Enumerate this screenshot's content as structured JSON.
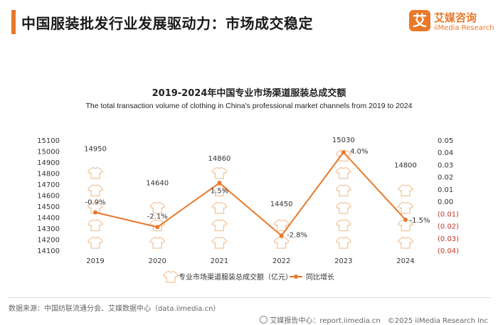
{
  "header": {
    "title": "中国服装批发行业发展驱动力：市场成交稳定",
    "logo_mark": "艾",
    "logo_cn": "艾媒咨询",
    "logo_en": "iiMedia Research"
  },
  "chart_data": {
    "type": "bar",
    "title": "2019-2024年中国专业市场渠道服装总成交额",
    "subtitle": "The total transaction volume of clothing in China's professional market channels from 2019 to 2024",
    "categories": [
      "2019",
      "2020",
      "2021",
      "2022",
      "2023",
      "2024"
    ],
    "series": [
      {
        "name": "专业市场渠道服装总成交额（亿元）",
        "type": "bar",
        "axis": "left",
        "values": [
          14950,
          14640,
          14860,
          14450,
          15030,
          14800
        ],
        "labels": [
          "14950",
          "14640",
          "14860",
          "14450",
          "15030",
          "14800"
        ]
      },
      {
        "name": "同比增长",
        "type": "line",
        "axis": "right",
        "values": [
          -0.009,
          -0.021,
          0.015,
          -0.028,
          0.04,
          -0.015
        ],
        "labels": [
          "-0.9%",
          "-2.1%",
          "1.5%",
          "-2.8%",
          "4.0%",
          "-1.5%"
        ]
      }
    ],
    "y_left": {
      "min": 14100,
      "max": 15100,
      "ticks": [
        "15100",
        "15000",
        "14900",
        "14800",
        "14700",
        "14600",
        "14500",
        "14400",
        "14300",
        "14200",
        "14100"
      ]
    },
    "y_right": {
      "min": -0.04,
      "max": 0.05,
      "ticks": [
        "0.05",
        "0.04",
        "0.03",
        "0.02",
        "0.01",
        "0.00",
        "(0.01)",
        "(0.02)",
        "(0.03)",
        "(0.04)"
      ]
    },
    "grid": false,
    "legend_position": "bottom",
    "colors": {
      "line": "#e8792b",
      "icon_outline": "#f1c39a",
      "negative_tick": "#c0392b"
    }
  },
  "footer": {
    "source": "数据来源：中国纺联流通分会、艾媒数据中心（data.iimedia.cn）",
    "right": "艾媒报告中心：report.iimedia.cn　©2025  iiMedia Research  Inc"
  }
}
